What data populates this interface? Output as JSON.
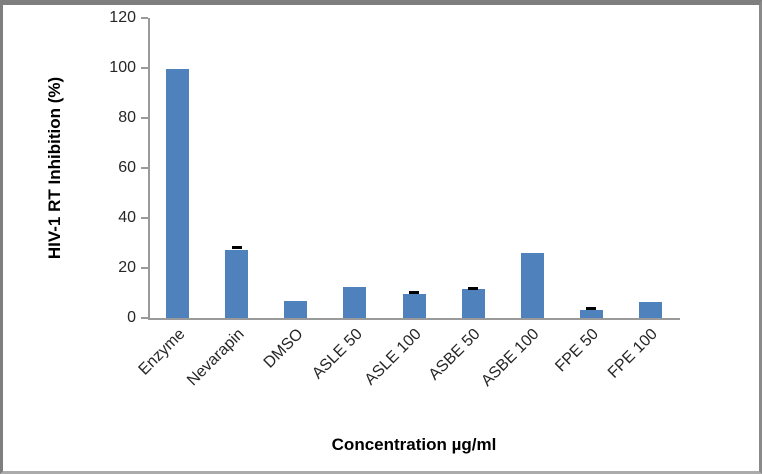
{
  "chart_data": {
    "type": "bar",
    "title": "",
    "xlabel": "Concentration µg/ml",
    "ylabel": "HIV-1 RT Inhibition (%)",
    "categories": [
      "Enzyme",
      "Nevarapin",
      "DMSO",
      "ASLE 50",
      "ASLE 100",
      "ASBE 50",
      "ASBE 100",
      "FPE 50",
      "FPE 100"
    ],
    "values": [
      99.8,
      27.3,
      7.0,
      12.4,
      9.6,
      11.5,
      26.2,
      3.2,
      6.4
    ],
    "error_plus": [
      0,
      1.0,
      0,
      0,
      0.8,
      0.7,
      0,
      0.7,
      0
    ],
    "yticks": [
      0,
      20,
      40,
      60,
      80,
      100,
      120
    ],
    "ylim": [
      0,
      120
    ],
    "grid": false,
    "legend_position": "none",
    "bar_color": "#4F81BD",
    "error_color": "#000000",
    "axis_color": "#9a9a9a",
    "tick_text_color": "#262626",
    "frame_color": "#7f7f7f"
  }
}
